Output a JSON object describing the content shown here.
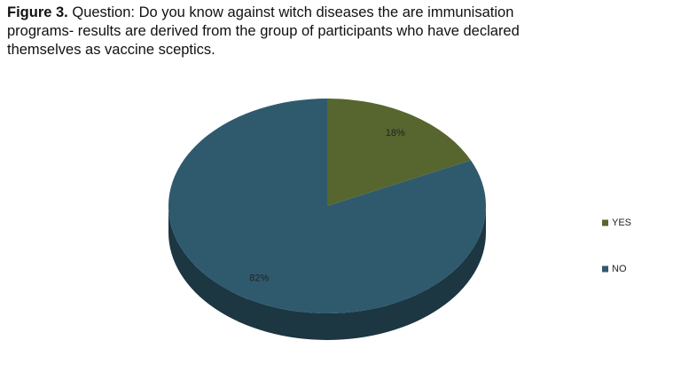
{
  "chart_data": {
    "type": "pie",
    "figure_label": "Figure 3.",
    "title": "Question: Do you know against witch diseases the are immunisation programs- results are derived from the group of participants who have declared themselves as vaccine sceptics.",
    "categories": [
      "YES",
      "NO"
    ],
    "values": [
      18,
      82
    ],
    "value_labels": [
      "18%",
      "82%"
    ],
    "colors": [
      "#56662e",
      "#2f5a6e"
    ],
    "legend": "right"
  }
}
